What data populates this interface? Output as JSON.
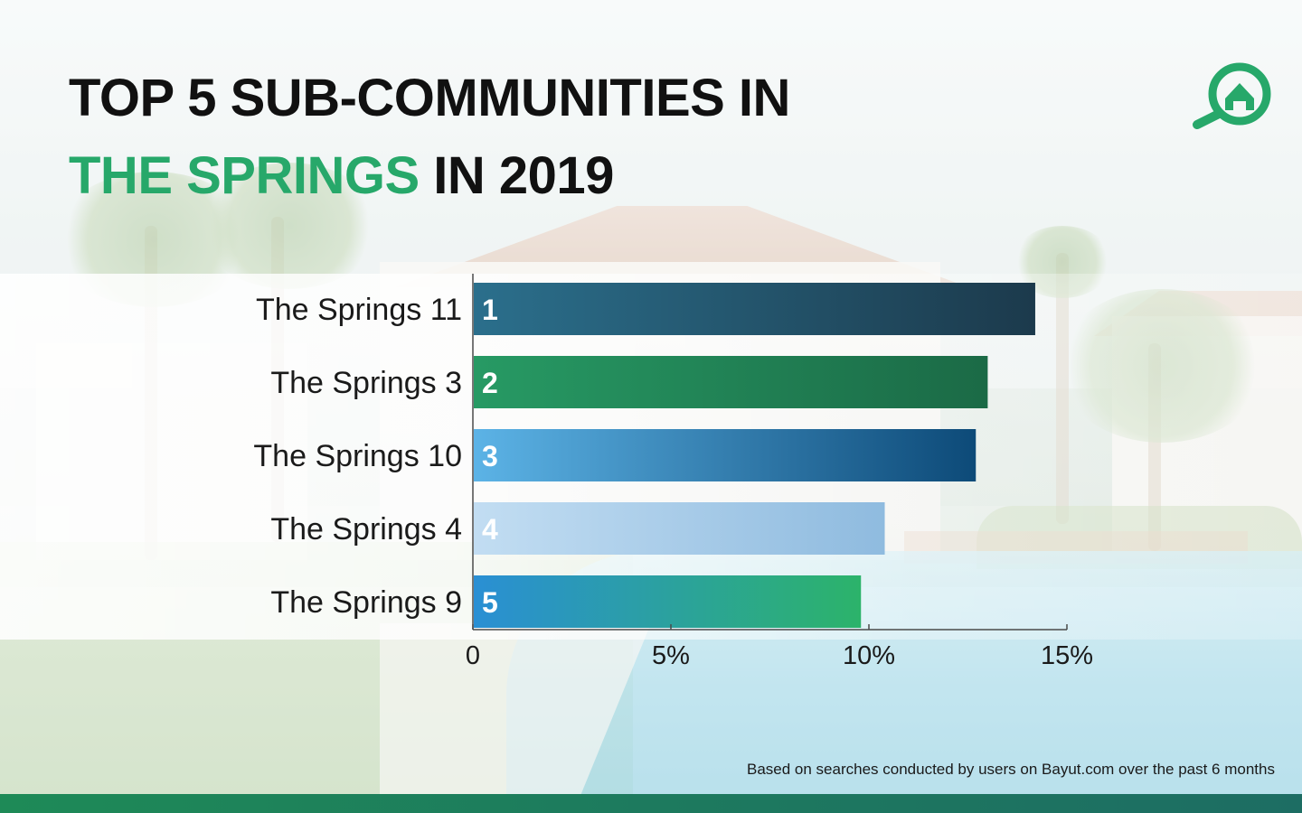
{
  "title": {
    "line1": "TOP 5 SUB-COMMUNITIES IN",
    "line2_accent": "THE SPRINGS",
    "line2_rest": " IN 2019"
  },
  "colors": {
    "accent": "#27a86a",
    "footer": "#1d7a5e",
    "bars": [
      [
        "#2b6f8c",
        "#1c3a4c"
      ],
      [
        "#279a64",
        "#1b6a46"
      ],
      [
        "#5cb3e6",
        "#0d4a78"
      ],
      [
        "#c2ddf2",
        "#8fbbdf"
      ],
      [
        "#2a8fd4",
        "#2cb36a"
      ]
    ]
  },
  "icons": {
    "logo": "search-home-icon"
  },
  "chart_data": {
    "type": "bar",
    "orientation": "horizontal",
    "categories": [
      "The Springs 11",
      "The Springs 3",
      "The Springs 10",
      "The Springs 4",
      "The Springs 9"
    ],
    "ranks": [
      "1",
      "2",
      "3",
      "4",
      "5"
    ],
    "values": [
      14.2,
      13.0,
      12.7,
      10.4,
      9.8
    ],
    "value_unit": "%",
    "xlim": [
      0,
      15
    ],
    "xticks": [
      0,
      5,
      10,
      15
    ],
    "xtick_labels": [
      "0",
      "5%",
      "10%",
      "15%"
    ],
    "title": "TOP 5 SUB-COMMUNITIES IN THE SPRINGS IN 2019",
    "xlabel": "",
    "ylabel": "",
    "grid": false,
    "legend": "none"
  },
  "footnote": "Based on searches conducted by users on Bayut.com over the past 6 months"
}
